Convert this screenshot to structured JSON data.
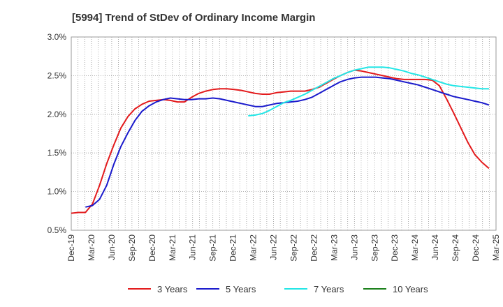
{
  "chart_data": {
    "type": "line",
    "title": "[5994]  Trend of StDev of Ordinary Income Margin",
    "xlabel": "",
    "ylabel": "",
    "y_tick_labels": [
      "0.5%",
      "1.0%",
      "1.5%",
      "2.0%",
      "2.5%",
      "3.0%"
    ],
    "ylim": [
      0.5,
      3.0
    ],
    "x_tick_labels": [
      "Dec-19",
      "Mar-20",
      "Jun-20",
      "Sep-20",
      "Dec-20",
      "Mar-21",
      "Jun-21",
      "Sep-21",
      "Dec-21",
      "Mar-22",
      "Jun-22",
      "Sep-22",
      "Dec-22",
      "Mar-23",
      "Jun-23",
      "Sep-23",
      "Dec-23",
      "Mar-24",
      "Jun-24",
      "Sep-24",
      "Dec-24",
      "Mar-25"
    ],
    "grid": true,
    "legend_position": "bottom",
    "series": [
      {
        "name": "3 Years",
        "color": "#e31a1c",
        "values": [
          0.72,
          0.73,
          0.73,
          0.84,
          1.08,
          1.36,
          1.6,
          1.82,
          1.97,
          2.07,
          2.13,
          2.17,
          2.18,
          2.19,
          2.18,
          2.16,
          2.16,
          2.22,
          2.27,
          2.3,
          2.32,
          2.33,
          2.33,
          2.32,
          2.31,
          2.29,
          2.27,
          2.26,
          2.26,
          2.28,
          2.29,
          2.3,
          2.3,
          2.3,
          2.32,
          2.35,
          2.4,
          2.45,
          2.5,
          2.54,
          2.57,
          2.56,
          2.54,
          2.52,
          2.5,
          2.48,
          2.46,
          2.45,
          2.45,
          2.45,
          2.45,
          2.44,
          2.37,
          2.2,
          2.02,
          1.83,
          1.64,
          1.48,
          1.38,
          1.3
        ]
      },
      {
        "name": "5 Years",
        "color": "#1a1acc",
        "values": [
          null,
          null,
          0.8,
          0.82,
          0.9,
          1.08,
          1.35,
          1.58,
          1.76,
          1.92,
          2.04,
          2.11,
          2.16,
          2.19,
          2.21,
          2.2,
          2.19,
          2.19,
          2.2,
          2.2,
          2.21,
          2.2,
          2.18,
          2.16,
          2.14,
          2.12,
          2.1,
          2.1,
          2.12,
          2.14,
          2.15,
          2.16,
          2.17,
          2.19,
          2.22,
          2.27,
          2.32,
          2.37,
          2.42,
          2.45,
          2.47,
          2.48,
          2.48,
          2.48,
          2.47,
          2.46,
          2.44,
          2.42,
          2.4,
          2.38,
          2.35,
          2.32,
          2.29,
          2.26,
          2.23,
          2.21,
          2.19,
          2.17,
          2.15,
          2.12
        ]
      },
      {
        "name": "7 Years",
        "color": "#22e6e6",
        "values": [
          null,
          null,
          null,
          null,
          null,
          null,
          null,
          null,
          null,
          null,
          null,
          null,
          null,
          null,
          null,
          null,
          null,
          null,
          null,
          null,
          null,
          null,
          null,
          null,
          null,
          1.98,
          1.99,
          2.01,
          2.05,
          2.1,
          2.15,
          2.18,
          2.22,
          2.26,
          2.31,
          2.36,
          2.41,
          2.46,
          2.5,
          2.54,
          2.57,
          2.59,
          2.61,
          2.61,
          2.61,
          2.6,
          2.58,
          2.56,
          2.53,
          2.51,
          2.48,
          2.45,
          2.42,
          2.39,
          2.37,
          2.36,
          2.35,
          2.34,
          2.33,
          2.33
        ]
      },
      {
        "name": "10 Years",
        "color": "#1a7f1a",
        "values": []
      }
    ]
  }
}
